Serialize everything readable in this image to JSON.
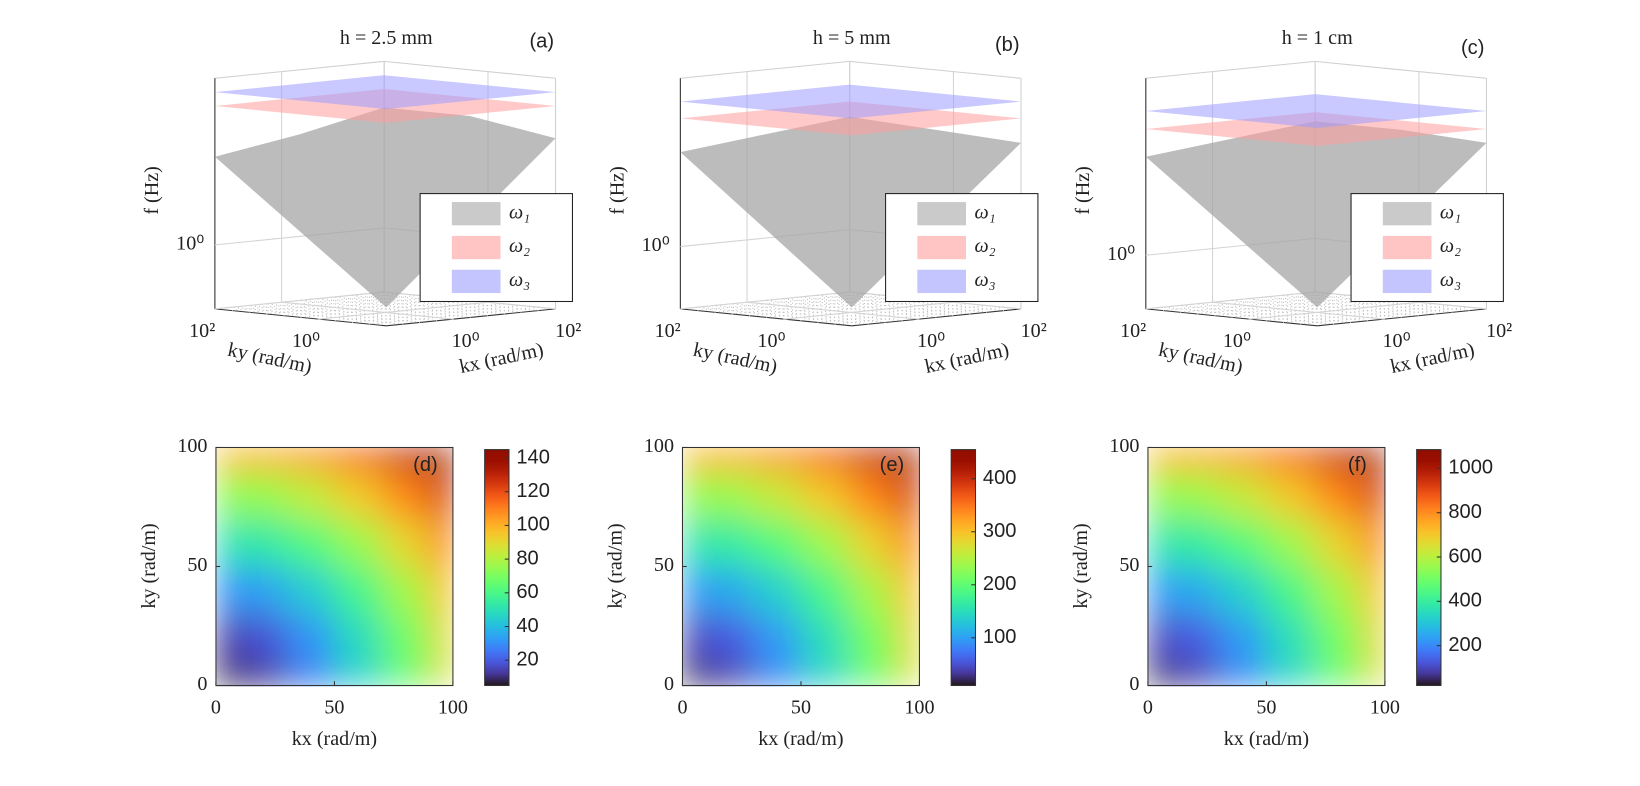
{
  "chart_data": [
    {
      "type": "surface3d",
      "title": "h = 2.5 mm",
      "panel_label": "(a)",
      "xlabel": "kx (rad/m)",
      "ylabel": "ky (rad/m)",
      "zlabel": "f (Hz)",
      "log_scale": true,
      "xlim": [
        0.05,
        100
      ],
      "ylim": [
        0.05,
        100
      ],
      "zlim": [
        0.1,
        400
      ],
      "xticks": [
        {
          "value": 1,
          "label": "10⁰"
        },
        {
          "value": 100,
          "label": "10²"
        }
      ],
      "yticks": [
        {
          "value": 1,
          "label": "10⁰"
        },
        {
          "value": 100,
          "label": "10²"
        }
      ],
      "zticks": [
        {
          "value": 1,
          "label": "10⁰"
        }
      ],
      "grid": true,
      "legend": "lower right",
      "series": [
        {
          "name": "ω₁",
          "color": "#a6a6a6"
        },
        {
          "name": "ω₂",
          "color": "#ff9c9c"
        },
        {
          "name": "ω₃",
          "color": "#9c9cff"
        }
      ]
    },
    {
      "type": "surface3d",
      "title": "h = 5 mm",
      "panel_label": "(b)",
      "xlabel": "kx (rad/m)",
      "ylabel": "ky (rad/m)",
      "zlabel": "f (Hz)",
      "log_scale": true,
      "xlim": [
        0.05,
        100
      ],
      "ylim": [
        0.05,
        100
      ],
      "zlim": [
        0.1,
        500
      ],
      "xticks": [
        {
          "value": 1,
          "label": "10⁰"
        },
        {
          "value": 100,
          "label": "10²"
        }
      ],
      "yticks": [
        {
          "value": 1,
          "label": "10⁰"
        },
        {
          "value": 100,
          "label": "10²"
        }
      ],
      "zticks": [
        {
          "value": 1,
          "label": "10⁰"
        }
      ],
      "grid": true,
      "legend": "lower right",
      "series": [
        {
          "name": "ω₁",
          "color": "#a6a6a6"
        },
        {
          "name": "ω₂",
          "color": "#ff9c9c"
        },
        {
          "name": "ω₃",
          "color": "#9c9cff"
        }
      ]
    },
    {
      "type": "surface3d",
      "title": "h = 1 cm",
      "panel_label": "(c)",
      "xlabel": "kx (rad/m)",
      "ylabel": "ky (rad/m)",
      "zlabel": "f (Hz)",
      "log_scale": true,
      "xlim": [
        0.05,
        100
      ],
      "ylim": [
        0.05,
        100
      ],
      "zlim": [
        0.1,
        2000
      ],
      "xticks": [
        {
          "value": 1,
          "label": "10⁰"
        },
        {
          "value": 100,
          "label": "10²"
        }
      ],
      "yticks": [
        {
          "value": 1,
          "label": "10⁰"
        },
        {
          "value": 100,
          "label": "10²"
        }
      ],
      "zticks": [
        {
          "value": 1,
          "label": "10⁰"
        }
      ],
      "grid": true,
      "legend": "lower right",
      "series": [
        {
          "name": "ω₁",
          "color": "#a6a6a6"
        },
        {
          "name": "ω₂",
          "color": "#ff9c9c"
        },
        {
          "name": "ω₃",
          "color": "#9c9cff"
        }
      ]
    },
    {
      "type": "heatmap",
      "panel_label": "(d)",
      "xlabel": "kx (rad/m)",
      "ylabel": "ky (rad/m)",
      "colormap": "turbo",
      "x": [
        0,
        20,
        40,
        60,
        80,
        100
      ],
      "y": [
        0,
        20,
        40,
        60,
        80,
        100
      ],
      "values": [
        [
          0,
          11,
          26,
          45,
          65,
          87
        ],
        [
          12,
          18,
          31,
          48,
          68,
          90
        ],
        [
          30,
          34,
          44,
          59,
          77,
          97
        ],
        [
          50,
          53,
          62,
          75,
          91,
          110
        ],
        [
          73,
          75,
          83,
          94,
          108,
          126
        ],
        [
          98,
          100,
          106,
          116,
          129,
          145
        ]
      ],
      "xlim": [
        0,
        100
      ],
      "ylim": [
        0,
        100
      ],
      "xticks": [
        0,
        50,
        100
      ],
      "yticks": [
        0,
        50,
        100
      ],
      "clim": [
        5,
        145
      ],
      "cticks": [
        20,
        40,
        60,
        80,
        100,
        120,
        140
      ]
    },
    {
      "type": "heatmap",
      "panel_label": "(e)",
      "xlabel": "kx (rad/m)",
      "ylabel": "ky (rad/m)",
      "colormap": "turbo",
      "x": [
        0,
        20,
        40,
        60,
        80,
        100
      ],
      "y": [
        0,
        20,
        40,
        60,
        80,
        100
      ],
      "values": [
        [
          0,
          34,
          83,
          140,
          204,
          273
        ],
        [
          38,
          57,
          97,
          151,
          214,
          283
        ],
        [
          94,
          107,
          138,
          185,
          242,
          305
        ],
        [
          157,
          166,
          195,
          236,
          286,
          345
        ],
        [
          229,
          236,
          261,
          295,
          339,
          396
        ],
        [
          308,
          314,
          333,
          364,
          405,
          455
        ]
      ],
      "xlim": [
        0,
        100
      ],
      "ylim": [
        0,
        100
      ],
      "xticks": [
        0,
        50,
        100
      ],
      "yticks": [
        0,
        50,
        100
      ],
      "clim": [
        10,
        455
      ],
      "cticks": [
        100,
        200,
        300,
        400
      ]
    },
    {
      "type": "heatmap",
      "panel_label": "(f)",
      "xlabel": "kx (rad/m)",
      "ylabel": "ky (rad/m)",
      "colormap": "turbo",
      "x": [
        0,
        20,
        40,
        60,
        80,
        100
      ],
      "y": [
        0,
        20,
        40,
        60,
        80,
        100
      ],
      "values": [
        [
          0,
          80,
          196,
          333,
          484,
          648
        ],
        [
          89,
          134,
          231,
          358,
          507,
          671
        ],
        [
          224,
          253,
          328,
          440,
          574,
          723
        ],
        [
          373,
          395,
          462,
          559,
          678,
          820
        ],
        [
          544,
          559,
          618,
          700,
          805,
          939
        ],
        [
          730,
          745,
          790,
          864,
          961,
          1080
        ]
      ],
      "xlim": [
        0,
        100
      ],
      "ylim": [
        0,
        100
      ],
      "xticks": [
        0,
        50,
        100
      ],
      "yticks": [
        0,
        50,
        100
      ],
      "clim": [
        20,
        1085
      ],
      "cticks": [
        200,
        400,
        600,
        800,
        1000
      ]
    }
  ]
}
